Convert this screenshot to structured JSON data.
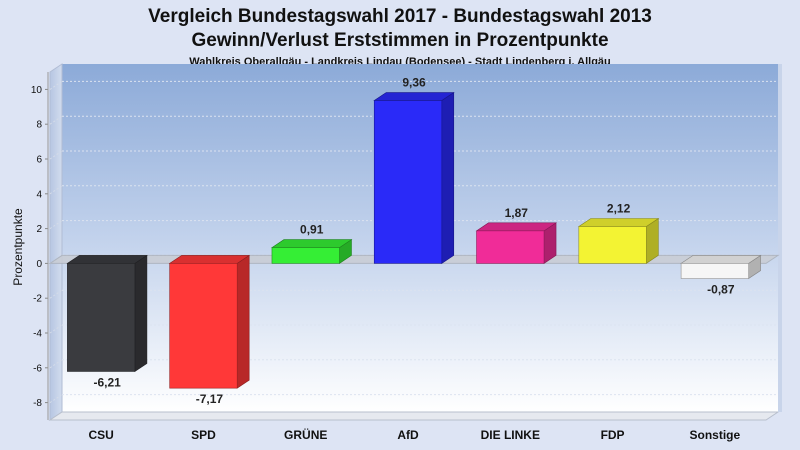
{
  "chart_data": {
    "type": "bar",
    "title": "Vergleich Bundestagswahl 2017 - Bundestagswahl 2013",
    "subtitle": "Gewinn/Verlust Erststimmen in Prozentpunkte",
    "subsubtitle": "Wahlkreis Oberallgäu - Landkreis Lindau (Bodensee) - Stadt Lindenberg i. Allgäu",
    "ylabel": "Prozentpunkte",
    "xlabel": "",
    "ylim": [
      -9,
      11
    ],
    "yticks": [
      10,
      8,
      6,
      4,
      2,
      0,
      -2,
      -4,
      -6,
      -8
    ],
    "categories": [
      "CSU",
      "SPD",
      "GRÜNE",
      "AfD",
      "DIE LINKE",
      "FDP",
      "Sonstige"
    ],
    "values": [
      -6.21,
      -7.17,
      0.91,
      9.36,
      1.87,
      2.12,
      -0.87
    ],
    "value_labels": [
      "-6,21",
      "-7,17",
      "0,91",
      "9,36",
      "1,87",
      "2,12",
      "-0,87"
    ],
    "colors": [
      "#3a3b3f",
      "#ff3838",
      "#35ee35",
      "#2a2af8",
      "#f02c98",
      "#f3f333",
      "#f6f6f6"
    ],
    "grid": true,
    "legend": "none"
  }
}
